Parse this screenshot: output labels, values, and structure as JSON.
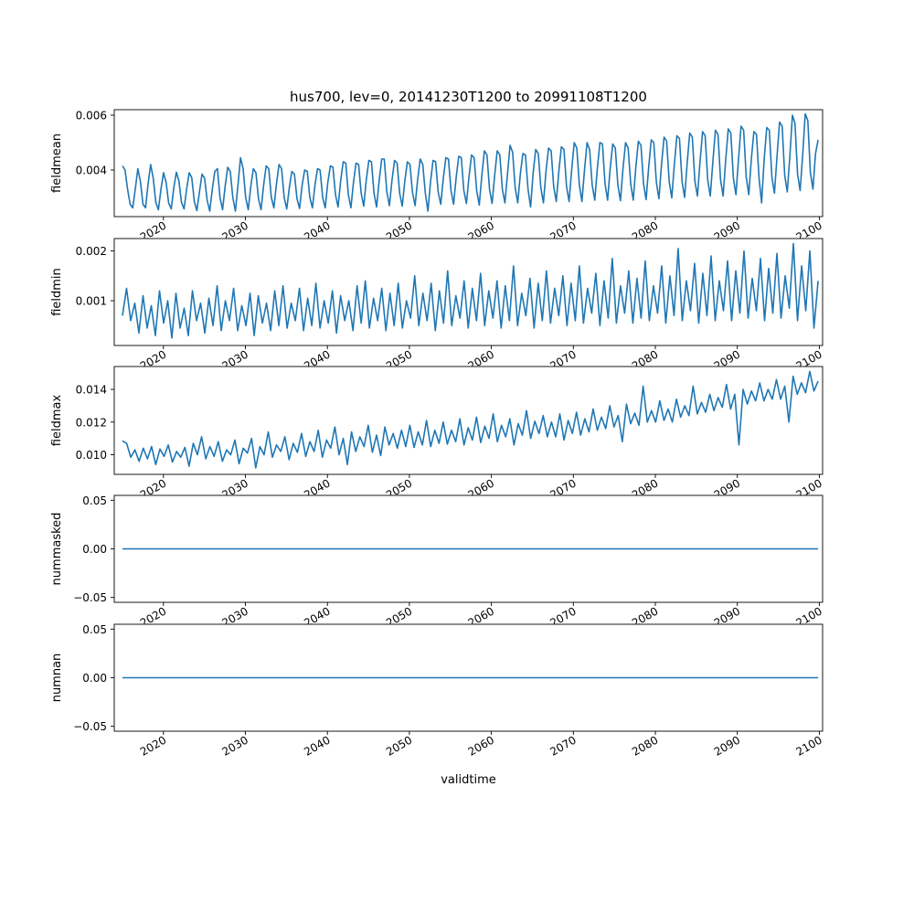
{
  "chart_data": {
    "type": "line",
    "title": "hus700, lev=0, 20141230T1200 to 20991108T1200",
    "xlabel": "validtime",
    "x_ticks": [
      "2020",
      "2030",
      "2040",
      "2050",
      "2060",
      "2070",
      "2080",
      "2090",
      "2100"
    ],
    "x_range": [
      2014.0,
      2100.4
    ],
    "series_color": "#1f77b4",
    "grid": false,
    "panels": [
      {
        "ylabel": "fieldmean",
        "ylim": [
          0.0023,
          0.0062
        ],
        "yticks": [
          "0.004",
          "0.006"
        ],
        "ytick_values": [
          0.004,
          0.006
        ],
        "x_start": 2015.0,
        "x_end": 2099.85,
        "values": [
          0.00415,
          0.004,
          0.0033,
          0.00275,
          0.00262,
          0.0033,
          0.00405,
          0.00358,
          0.00275,
          0.00262,
          0.0035,
          0.0042,
          0.0037,
          0.00282,
          0.00255,
          0.0033,
          0.0039,
          0.00355,
          0.0028,
          0.00258,
          0.00335,
          0.00392,
          0.0036,
          0.00282,
          0.00258,
          0.0033,
          0.0039,
          0.00372,
          0.00285,
          0.00252,
          0.0032,
          0.00385,
          0.0037,
          0.0029,
          0.0025,
          0.0033,
          0.00395,
          0.00405,
          0.003,
          0.00255,
          0.0034,
          0.0041,
          0.00395,
          0.003,
          0.0025,
          0.00345,
          0.00445,
          0.00405,
          0.003,
          0.00255,
          0.0034,
          0.00405,
          0.0039,
          0.00295,
          0.00255,
          0.00345,
          0.00415,
          0.00405,
          0.003,
          0.00262,
          0.0035,
          0.0042,
          0.00405,
          0.003,
          0.00258,
          0.00335,
          0.00395,
          0.00385,
          0.00295,
          0.0026,
          0.00345,
          0.004,
          0.00395,
          0.003,
          0.00262,
          0.00345,
          0.00405,
          0.004,
          0.003,
          0.00262,
          0.00355,
          0.00415,
          0.0041,
          0.0031,
          0.00265,
          0.0036,
          0.0043,
          0.00425,
          0.0031,
          0.00262,
          0.00355,
          0.00425,
          0.0042,
          0.00315,
          0.00268,
          0.00365,
          0.00435,
          0.0043,
          0.00315,
          0.00265,
          0.0036,
          0.0044,
          0.0044,
          0.0032,
          0.0027,
          0.00362,
          0.00435,
          0.00425,
          0.00315,
          0.00268,
          0.0036,
          0.0043,
          0.0042,
          0.00318,
          0.0027,
          0.00365,
          0.0044,
          0.0042,
          0.00315,
          0.0025,
          0.00355,
          0.00435,
          0.0043,
          0.0032,
          0.00275,
          0.0037,
          0.00445,
          0.0044,
          0.00325,
          0.00275,
          0.00372,
          0.0045,
          0.00445,
          0.00325,
          0.00278,
          0.00375,
          0.00455,
          0.00445,
          0.00325,
          0.00272,
          0.0038,
          0.0047,
          0.00455,
          0.0033,
          0.00278,
          0.0038,
          0.0047,
          0.00455,
          0.0033,
          0.0028,
          0.00385,
          0.0049,
          0.00465,
          0.00335,
          0.0028,
          0.00385,
          0.0046,
          0.00455,
          0.0033,
          0.00265,
          0.0039,
          0.00475,
          0.0046,
          0.00335,
          0.0028,
          0.00395,
          0.0048,
          0.0047,
          0.0034,
          0.00285,
          0.00395,
          0.00485,
          0.00475,
          0.0034,
          0.00285,
          0.004,
          0.005,
          0.0048,
          0.00345,
          0.00285,
          0.004,
          0.005,
          0.00475,
          0.00345,
          0.0029,
          0.00405,
          0.005,
          0.00495,
          0.0035,
          0.0029,
          0.00405,
          0.00495,
          0.0048,
          0.00345,
          0.00288,
          0.00405,
          0.005,
          0.0048,
          0.0035,
          0.0029,
          0.0041,
          0.00505,
          0.0049,
          0.0035,
          0.00292,
          0.0041,
          0.0051,
          0.005,
          0.00355,
          0.00295,
          0.0042,
          0.0052,
          0.00505,
          0.00358,
          0.00298,
          0.0042,
          0.00525,
          0.00515,
          0.00358,
          0.003,
          0.00425,
          0.00535,
          0.0052,
          0.0036,
          0.00305,
          0.0043,
          0.0054,
          0.00525,
          0.00365,
          0.00305,
          0.0043,
          0.00545,
          0.0053,
          0.00365,
          0.00305,
          0.00435,
          0.0055,
          0.00535,
          0.0037,
          0.0031,
          0.0044,
          0.0056,
          0.00545,
          0.00375,
          0.0031,
          0.0044,
          0.0054,
          0.0053,
          0.0037,
          0.0028,
          0.0044,
          0.00555,
          0.00545,
          0.00375,
          0.00315,
          0.0045,
          0.00575,
          0.0056,
          0.0038,
          0.0032,
          0.0045,
          0.006,
          0.0057,
          0.00385,
          0.00325,
          0.00455,
          0.00605,
          0.0058,
          0.0039,
          0.0033,
          0.0046,
          0.0051
        ]
      },
      {
        "ylabel": "fieldmin",
        "ylim": [
          0.0001,
          0.00225
        ],
        "yticks": [
          "0.001",
          "0.002"
        ],
        "ytick_values": [
          0.001,
          0.002
        ],
        "x_start": 2015.0,
        "x_end": 2099.85,
        "values": [
          0.0007,
          0.00125,
          0.0006,
          0.00095,
          0.00035,
          0.0011,
          0.00045,
          0.0009,
          0.0003,
          0.0012,
          0.00055,
          0.001,
          0.00025,
          0.00115,
          0.00045,
          0.00085,
          0.0003,
          0.0012,
          0.0006,
          0.00095,
          0.00035,
          0.00105,
          0.0005,
          0.0013,
          0.0004,
          0.001,
          0.0006,
          0.00125,
          0.0004,
          0.0009,
          0.0005,
          0.00115,
          0.0003,
          0.0011,
          0.00055,
          0.00095,
          0.0004,
          0.0012,
          0.0005,
          0.0013,
          0.00045,
          0.00095,
          0.0006,
          0.00125,
          0.0004,
          0.00105,
          0.0005,
          0.00135,
          0.00045,
          0.001,
          0.00055,
          0.0012,
          0.00035,
          0.0011,
          0.0006,
          0.001,
          0.0004,
          0.0013,
          0.00055,
          0.0014,
          0.00045,
          0.00105,
          0.0006,
          0.00125,
          0.0004,
          0.00115,
          0.0005,
          0.00135,
          0.00045,
          0.001,
          0.00065,
          0.0015,
          0.0005,
          0.00115,
          0.0006,
          0.00135,
          0.0004,
          0.0012,
          0.00055,
          0.0016,
          0.0005,
          0.0011,
          0.00065,
          0.0014,
          0.00045,
          0.00125,
          0.0006,
          0.00155,
          0.0005,
          0.0012,
          0.00065,
          0.0014,
          0.00045,
          0.0013,
          0.0006,
          0.0017,
          0.0005,
          0.00115,
          0.0007,
          0.00145,
          0.00045,
          0.00135,
          0.0006,
          0.0016,
          0.00055,
          0.00125,
          0.0007,
          0.0015,
          0.0005,
          0.00135,
          0.0006,
          0.0017,
          0.00055,
          0.00125,
          0.00075,
          0.00155,
          0.0005,
          0.0014,
          0.00065,
          0.00185,
          0.00055,
          0.0013,
          0.00075,
          0.0016,
          0.00055,
          0.00145,
          0.00065,
          0.0018,
          0.0006,
          0.0013,
          0.00075,
          0.0017,
          0.00055,
          0.0015,
          0.0007,
          0.00205,
          0.0006,
          0.0014,
          0.0008,
          0.00175,
          0.00055,
          0.00155,
          0.0007,
          0.0019,
          0.0006,
          0.0014,
          0.0008,
          0.0018,
          0.0006,
          0.0016,
          0.00075,
          0.002,
          0.00065,
          0.00145,
          0.0008,
          0.00185,
          0.0006,
          0.00165,
          0.00075,
          0.00195,
          0.00065,
          0.0015,
          0.00085,
          0.00215,
          0.0006,
          0.0017,
          0.0008,
          0.002,
          0.00045,
          0.0014
        ]
      },
      {
        "ylabel": "fieldmax",
        "ylim": [
          0.0088,
          0.0154
        ],
        "yticks": [
          "0.010",
          "0.012",
          "0.014"
        ],
        "ytick_values": [
          0.01,
          0.012,
          0.014
        ],
        "x_start": 2015.0,
        "x_end": 2099.85,
        "values": [
          0.01085,
          0.0107,
          0.00985,
          0.0103,
          0.0096,
          0.0104,
          0.00975,
          0.0105,
          0.0094,
          0.01035,
          0.0099,
          0.0106,
          0.00955,
          0.0102,
          0.00985,
          0.01045,
          0.0093,
          0.0107,
          0.01,
          0.0111,
          0.00975,
          0.0105,
          0.0099,
          0.0108,
          0.0096,
          0.0103,
          0.01,
          0.0109,
          0.00945,
          0.0104,
          0.0101,
          0.011,
          0.0092,
          0.0105,
          0.01,
          0.0114,
          0.00985,
          0.0106,
          0.0102,
          0.0111,
          0.0097,
          0.0107,
          0.01015,
          0.0113,
          0.0099,
          0.0108,
          0.0102,
          0.0115,
          0.00985,
          0.0109,
          0.0104,
          0.0117,
          0.01,
          0.011,
          0.0094,
          0.0114,
          0.0102,
          0.0111,
          0.0105,
          0.0118,
          0.01015,
          0.0112,
          0.00995,
          0.0117,
          0.0106,
          0.0113,
          0.0104,
          0.0115,
          0.0105,
          0.0118,
          0.01045,
          0.0114,
          0.0106,
          0.0121,
          0.0105,
          0.0115,
          0.0107,
          0.012,
          0.01065,
          0.0115,
          0.0108,
          0.0122,
          0.0106,
          0.01165,
          0.0109,
          0.0123,
          0.01075,
          0.01175,
          0.011,
          0.0125,
          0.0108,
          0.0118,
          0.0111,
          0.0122,
          0.0106,
          0.0119,
          0.0112,
          0.0127,
          0.011,
          0.01205,
          0.0113,
          0.0124,
          0.0111,
          0.012,
          0.0111,
          0.0125,
          0.0109,
          0.0121,
          0.0113,
          0.0126,
          0.0112,
          0.0122,
          0.0114,
          0.0128,
          0.0115,
          0.0123,
          0.0116,
          0.013,
          0.0117,
          0.0124,
          0.0108,
          0.0131,
          0.0119,
          0.01255,
          0.0118,
          0.0142,
          0.012,
          0.0127,
          0.012,
          0.0133,
          0.0121,
          0.0128,
          0.012,
          0.0134,
          0.0123,
          0.013,
          0.0124,
          0.0142,
          0.0125,
          0.0132,
          0.0126,
          0.0137,
          0.0127,
          0.0135,
          0.0129,
          0.0143,
          0.0128,
          0.0137,
          0.0106,
          0.014,
          0.0131,
          0.0139,
          0.0133,
          0.0144,
          0.0133,
          0.014,
          0.0134,
          0.0146,
          0.0134,
          0.0142,
          0.012,
          0.0148,
          0.0137,
          0.0144,
          0.0138,
          0.0151,
          0.0139,
          0.0145
        ]
      },
      {
        "ylabel": "nummasked",
        "ylim": [
          -0.055,
          0.055
        ],
        "yticks": [
          "0.05",
          "0.00",
          "−0.05"
        ],
        "ytick_values": [
          0.05,
          0.0,
          -0.05
        ],
        "x_start": 2015.0,
        "x_end": 2099.85,
        "values": [
          0,
          0
        ]
      },
      {
        "ylabel": "numnan",
        "ylim": [
          -0.055,
          0.055
        ],
        "yticks": [
          "0.05",
          "0.00",
          "−0.05"
        ],
        "ytick_values": [
          0.05,
          0.0,
          -0.05
        ],
        "x_start": 2015.0,
        "x_end": 2099.85,
        "values": [
          0,
          0
        ]
      }
    ]
  }
}
